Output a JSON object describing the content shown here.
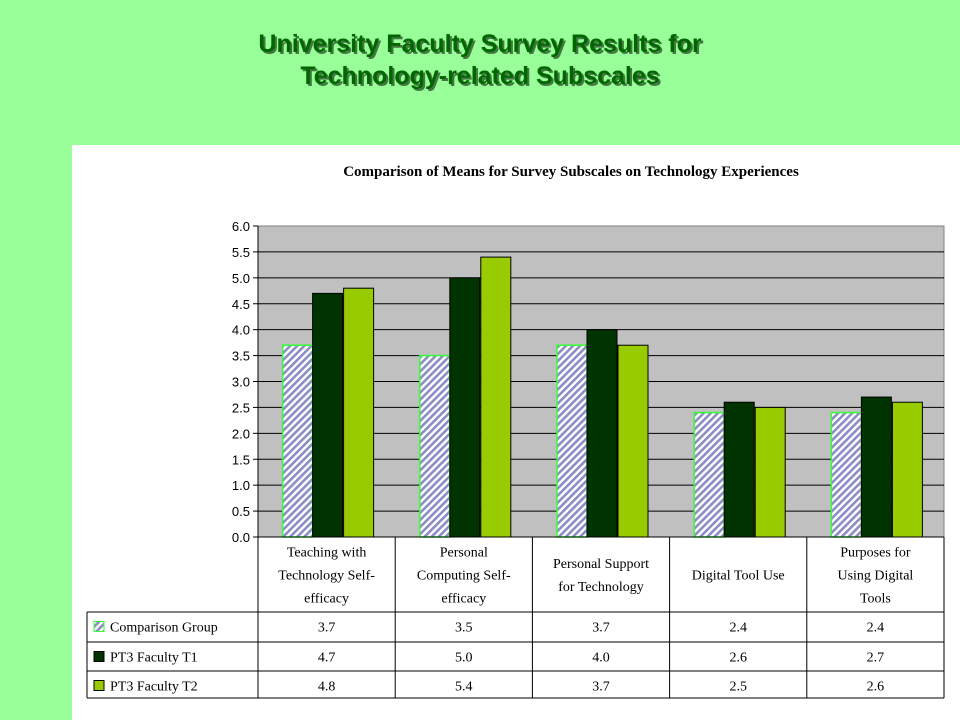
{
  "slide": {
    "title_line1": "University Faculty Survey Results for",
    "title_line2": "Technology-related Subscales"
  },
  "chart_data": {
    "type": "bar",
    "title": "Comparison of Means for Survey Subscales on Technology Experiences",
    "xlabel": "",
    "ylabel": "",
    "ylim": [
      0,
      6
    ],
    "yticks": [
      "0.0",
      "0.5",
      "1.0",
      "1.5",
      "2.0",
      "2.5",
      "3.0",
      "3.5",
      "4.0",
      "4.5",
      "5.0",
      "5.5",
      "6.0"
    ],
    "grid": true,
    "legend": "data-table-left",
    "categories": [
      [
        "Teaching with",
        "Technology Self-",
        "efficacy"
      ],
      [
        "Personal",
        "Computing Self-",
        "efficacy"
      ],
      [
        "Personal Support",
        "for Technology"
      ],
      [
        "Digital Tool Use"
      ],
      [
        "Purposes for",
        "Using Digital",
        "Tools"
      ]
    ],
    "series": [
      {
        "name": "Comparison Group",
        "values": [
          3.7,
          3.5,
          3.7,
          2.4,
          2.4
        ],
        "labels": [
          "3.7",
          "3.5",
          "3.7",
          "2.4",
          "2.4"
        ],
        "color": "#ccccee",
        "pattern": "hatch",
        "edge": "#33ff33"
      },
      {
        "name": "PT3 Faculty T1",
        "values": [
          4.7,
          5.0,
          4.0,
          2.6,
          2.7
        ],
        "labels": [
          "4.7",
          "5.0",
          "4.0",
          "2.6",
          "2.7"
        ],
        "color": "#003300"
      },
      {
        "name": "PT3 Faculty T2",
        "values": [
          4.8,
          5.4,
          3.7,
          2.5,
          2.6
        ],
        "labels": [
          "4.8",
          "5.4",
          "3.7",
          "2.5",
          "2.6"
        ],
        "color": "#99cc00"
      }
    ],
    "plot_background": "#c0c0c0"
  }
}
